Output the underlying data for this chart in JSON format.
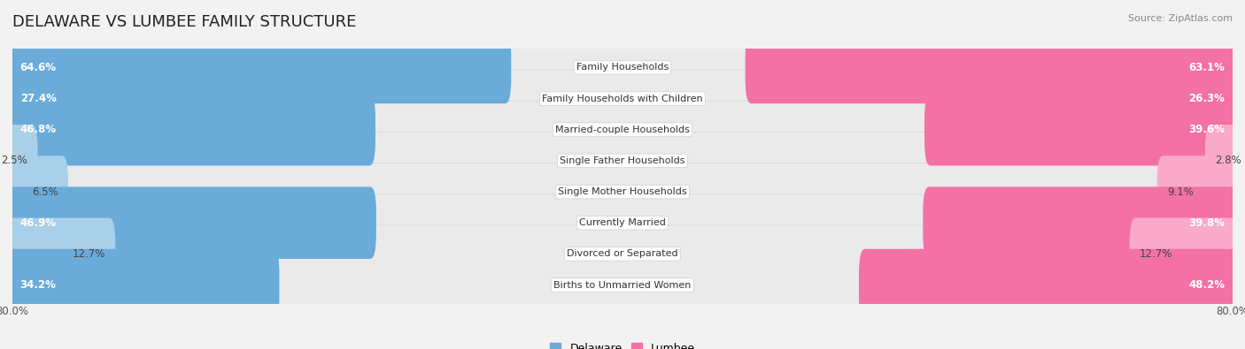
{
  "title": "DELAWARE VS LUMBEE FAMILY STRUCTURE",
  "source": "Source: ZipAtlas.com",
  "categories": [
    "Family Households",
    "Family Households with Children",
    "Married-couple Households",
    "Single Father Households",
    "Single Mother Households",
    "Currently Married",
    "Divorced or Separated",
    "Births to Unmarried Women"
  ],
  "delaware_values": [
    64.6,
    27.4,
    46.8,
    2.5,
    6.5,
    46.9,
    12.7,
    34.2
  ],
  "lumbee_values": [
    63.1,
    26.3,
    39.6,
    2.8,
    9.1,
    39.8,
    12.7,
    48.2
  ],
  "delaware_color_large": "#6aabda",
  "delaware_color_small": "#aacfe8",
  "lumbee_color_large": "#f471a5",
  "lumbee_color_small": "#f9aac8",
  "max_value": 80.0,
  "background_color": "#f2f2f2",
  "row_bg_color": "#eaeaea",
  "row_border_color": "#d8d8d8",
  "title_fontsize": 13,
  "source_fontsize": 8,
  "axis_label_fontsize": 8.5,
  "bar_label_fontsize": 8.5,
  "category_fontsize": 8,
  "large_threshold": 15
}
